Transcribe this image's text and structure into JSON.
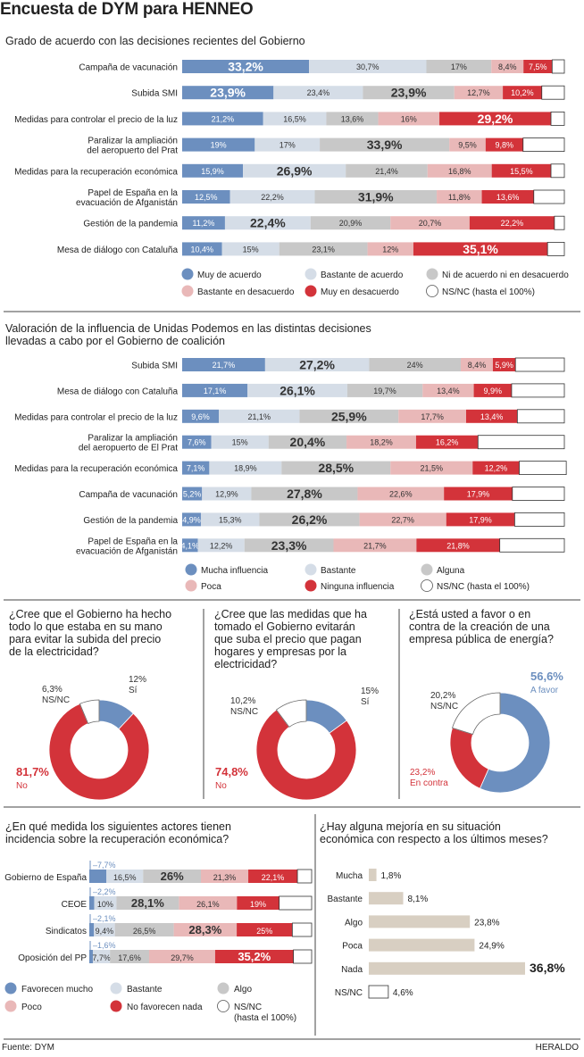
{
  "title": "Encuesta de DYM para HENNEO",
  "source": "Fuente: DYM",
  "brand": "HERALDO",
  "colors": {
    "c1": "#6c8fbf",
    "c2": "#d5dde7",
    "c3": "#c8c8c8",
    "c4": "#e9b8b8",
    "c5": "#d3333a",
    "c6": "#ffffff",
    "beige": "#d8cfc2"
  },
  "chart_data": [
    {
      "type": "bar",
      "orientation": "horizontal",
      "stacked": true,
      "title": "Grado de acuerdo con las decisiones recientes del Gobierno",
      "categories": [
        "Campaña de vacunación",
        "Subida SMI",
        "Medidas para controlar el precio de la luz",
        "Paralizar la ampliación\ndel aeropuerto del Prat",
        "Medidas para la recuperación económica",
        "Papel de España en la\nevacuación de Afganistán",
        "Gestión de la pandemia",
        "Mesa de diálogo con Cataluña"
      ],
      "series": [
        {
          "name": "Muy de acuerdo",
          "color": "c1",
          "values": [
            33.2,
            23.9,
            21.2,
            19,
            15.9,
            12.5,
            11.2,
            10.4
          ]
        },
        {
          "name": "Bastante de acuerdo",
          "color": "c2",
          "values": [
            30.7,
            23.4,
            16.5,
            17,
            26.9,
            22.2,
            22.4,
            15
          ]
        },
        {
          "name": "Ni de acuerdo ni en desacuerdo",
          "color": "c3",
          "values": [
            17,
            23.9,
            13.6,
            33.9,
            21.4,
            31.9,
            20.9,
            23.1
          ]
        },
        {
          "name": "Bastante en desacuerdo",
          "color": "c4",
          "values": [
            8.4,
            12.7,
            16,
            9.5,
            16.8,
            11.8,
            20.7,
            12
          ]
        },
        {
          "name": "Muy en desacuerdo",
          "color": "c5",
          "values": [
            7.5,
            10.2,
            29.2,
            9.8,
            15.5,
            13.6,
            22.2,
            35.1
          ]
        },
        {
          "name": "NS/NC  (hasta el 100%)",
          "color": "c6",
          "values": [
            3.2,
            5.9,
            3.5,
            10.8,
            3.5,
            8,
            2.6,
            4.4
          ]
        }
      ],
      "labels": [
        [
          "33,2%",
          "30,7%",
          "17%",
          "8,4%",
          "7,5%",
          ""
        ],
        [
          "23,9%",
          "23,4%",
          "23,9%",
          "12,7%",
          "10,2%",
          ""
        ],
        [
          "21,2%",
          "16,5%",
          "13,6%",
          "16%",
          "29,2%",
          ""
        ],
        [
          "19%",
          "17%",
          "33,9%",
          "9,5%",
          "9,8%",
          ""
        ],
        [
          "15,9%",
          "26,9%",
          "21,4%",
          "16,8%",
          "15,5%",
          ""
        ],
        [
          "12,5%",
          "22,2%",
          "31,9%",
          "11,8%",
          "13,6%",
          ""
        ],
        [
          "11,2%",
          "22,4%",
          "20,9%",
          "20,7%",
          "22,2%",
          ""
        ],
        [
          "10,4%",
          "15%",
          "23,1%",
          "12%",
          "35,1%",
          ""
        ]
      ],
      "xlim": [
        0,
        100
      ]
    },
    {
      "type": "bar",
      "orientation": "horizontal",
      "stacked": true,
      "title": "Valoración de la influencia de Unidas Podemos en las distintas decisiones\nllevadas a cabo por el Gobierno de coalición",
      "categories": [
        "Subida SMI",
        "Mesa de diálogo con Cataluña",
        "Medidas para controlar el precio de la luz",
        "Paralizar la ampliación\ndel aeropuerto de El Prat",
        "Medidas para la recuperación económica",
        "Campaña de vacunación",
        "Gestión de la pandemia",
        "Papel de España en la\nevacuación de Afganistán"
      ],
      "series": [
        {
          "name": "Mucha influencia",
          "color": "c1",
          "values": [
            21.7,
            17.1,
            9.6,
            7.6,
            7.1,
            5.2,
            4.9,
            4.1
          ]
        },
        {
          "name": "Bastante",
          "color": "c2",
          "values": [
            27.2,
            26.1,
            21.1,
            15,
            18.9,
            12.9,
            15.3,
            12.2
          ]
        },
        {
          "name": "Alguna",
          "color": "c3",
          "values": [
            24,
            19.7,
            25.9,
            20.4,
            28.5,
            27.8,
            26.2,
            23.3
          ]
        },
        {
          "name": "Poca",
          "color": "c4",
          "values": [
            8.4,
            13.4,
            17.7,
            18.2,
            21.5,
            22.6,
            22.7,
            21.7
          ]
        },
        {
          "name": "Ninguna influencia",
          "color": "c5",
          "values": [
            5.9,
            9.9,
            13.4,
            16.2,
            12.2,
            17.9,
            17.9,
            21.8
          ]
        },
        {
          "name": "NS/NC  (hasta el 100%)",
          "color": "c6",
          "values": [
            12.8,
            13.8,
            12.3,
            22.6,
            12.3,
            13.6,
            13,
            16.9
          ]
        }
      ],
      "labels": [
        [
          "21,7%",
          "27,2%",
          "24%",
          "8,4%",
          "5,9%",
          ""
        ],
        [
          "17,1%",
          "26,1%",
          "19,7%",
          "13,4%",
          "9,9%",
          ""
        ],
        [
          "9,6%",
          "21,1%",
          "25,9%",
          "17,7%",
          "13,4%",
          ""
        ],
        [
          "7,6%",
          "15%",
          "20,4%",
          "18,2%",
          "16,2%",
          ""
        ],
        [
          "7,1%",
          "18,9%",
          "28,5%",
          "21,5%",
          "12,2%",
          ""
        ],
        [
          "5,2%",
          "12,9%",
          "27,8%",
          "22,6%",
          "17,9%",
          ""
        ],
        [
          "4,9%",
          "15,3%",
          "26,2%",
          "22,7%",
          "17,9%",
          ""
        ],
        [
          "4,1%",
          "12,2%",
          "23,3%",
          "21,7%",
          "21,8%",
          ""
        ]
      ],
      "xlim": [
        0,
        100
      ]
    },
    {
      "type": "pie",
      "donut": true,
      "title": "¿Cree que el Gobierno ha hecho\ntodo lo que estaba en su mano\npara evitar la subida del precio\nde la electricidad?",
      "slices": [
        {
          "name": "Sí",
          "value": 12,
          "label": "12%",
          "color": "c1"
        },
        {
          "name": "No",
          "value": 81.7,
          "label": "81,7%",
          "color": "c5"
        },
        {
          "name": "NS/NC",
          "value": 6.3,
          "label": "6,3%",
          "color": "c6"
        }
      ]
    },
    {
      "type": "pie",
      "donut": true,
      "title": "¿Cree que las medidas que ha\ntomado el Gobierno evitarán\nque suba el precio que pagan\nhogares y empresas por la\nelectricidad?",
      "slices": [
        {
          "name": "Sí",
          "value": 15,
          "label": "15%",
          "color": "c1"
        },
        {
          "name": "No",
          "value": 74.8,
          "label": "74,8%",
          "color": "c5"
        },
        {
          "name": "NS/NC",
          "value": 10.2,
          "label": "10,2%",
          "color": "c6"
        }
      ]
    },
    {
      "type": "pie",
      "donut": true,
      "title": "¿Está usted a favor o en\ncontra de la creación de una\nempresa pública de energía?",
      "slices": [
        {
          "name": "A favor",
          "value": 56.6,
          "label": "56,6%",
          "color": "c1"
        },
        {
          "name": "En contra",
          "value": 23.2,
          "label": "23,2%",
          "color": "c5"
        },
        {
          "name": "NS/NC",
          "value": 20.2,
          "label": "20,2%",
          "color": "c6"
        }
      ]
    },
    {
      "type": "bar",
      "orientation": "horizontal",
      "stacked": true,
      "title": "¿En qué medida los siguientes actores tienen\nincidencia sobre la recuperación económica?",
      "categories": [
        "Gobierno de España",
        "CEOE",
        "Sindicatos",
        "Oposición del PP"
      ],
      "series": [
        {
          "name": "Favorecen mucho",
          "color": "c1",
          "values": [
            7.7,
            2.2,
            2.1,
            1.6
          ]
        },
        {
          "name": "Bastante",
          "color": "c2",
          "values": [
            16.5,
            10,
            9.4,
            7.7
          ]
        },
        {
          "name": "Algo",
          "color": "c3",
          "values": [
            26,
            28.1,
            26.5,
            17.6
          ]
        },
        {
          "name": "Poco",
          "color": "c4",
          "values": [
            21.3,
            26.1,
            28.3,
            29.7
          ]
        },
        {
          "name": "No favorecen nada",
          "color": "c5",
          "values": [
            22.1,
            19,
            25,
            35.2
          ]
        },
        {
          "name": "NS/NC\n(hasta el 100%)",
          "color": "c6",
          "values": [
            6.4,
            14.6,
            8.7,
            8.2
          ]
        }
      ],
      "labels": [
        [
          "7,7%",
          "16,5%",
          "26%",
          "21,3%",
          "22,1%",
          ""
        ],
        [
          "2,2%",
          "10%",
          "28,1%",
          "26,1%",
          "19%",
          ""
        ],
        [
          "2,1%",
          "9,4%",
          "26,5%",
          "28,3%",
          "25%",
          ""
        ],
        [
          "1,6%",
          "7,7%",
          "17,6%",
          "29,7%",
          "35,2%",
          ""
        ]
      ],
      "xlim": [
        0,
        100
      ]
    },
    {
      "type": "bar",
      "orientation": "horizontal",
      "title": "¿Hay alguna mejoría en su situación\neconómica con respecto a los últimos meses?",
      "categories": [
        "Mucha",
        "Bastante",
        "Algo",
        "Poca",
        "Nada",
        "NS/NC"
      ],
      "values": [
        1.8,
        8.1,
        23.8,
        24.9,
        36.8,
        4.6
      ],
      "labels": [
        "1,8%",
        "8,1%",
        "23,8%",
        "24,9%",
        "36,8%",
        "4,6%"
      ]
    }
  ]
}
